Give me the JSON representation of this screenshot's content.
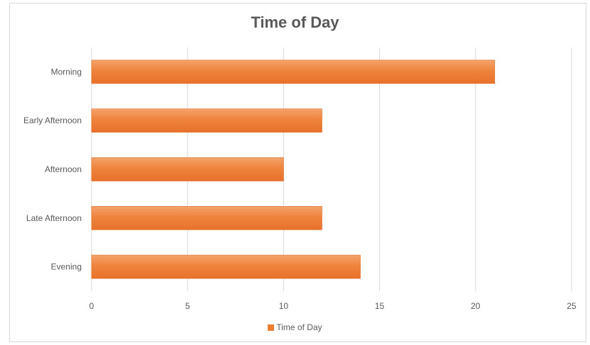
{
  "chart_data": {
    "type": "bar",
    "orientation": "horizontal",
    "title": "Time of Day",
    "categories": [
      "Morning",
      "Early Afternoon",
      "Afternoon",
      "Late Afternoon",
      "Evening"
    ],
    "series": [
      {
        "name": "Time of Day",
        "values": [
          21,
          12,
          10,
          12,
          14
        ],
        "color": "#ed7d31"
      }
    ],
    "xlim": [
      0,
      25
    ],
    "xticks": [
      0,
      5,
      10,
      15,
      20,
      25
    ],
    "grid": true,
    "legend_position": "bottom"
  }
}
